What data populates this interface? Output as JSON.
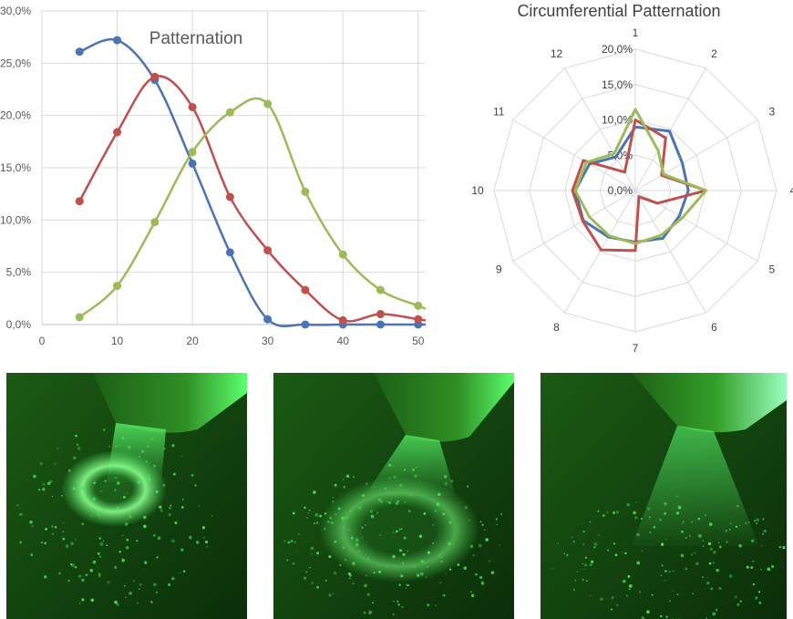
{
  "chart_data": [
    {
      "type": "line",
      "title": "Patternation",
      "xlabel": "",
      "ylabel": "",
      "xlim": [
        0,
        51
      ],
      "ylim": [
        0,
        30
      ],
      "x_ticks": [
        "0",
        "10",
        "20",
        "30",
        "40",
        "50"
      ],
      "y_ticks": [
        "0,0%",
        "5,0%",
        "10,0%",
        "15,0%",
        "20,0%",
        "25,0%",
        "30,0%"
      ],
      "grid": true,
      "smooth": true,
      "x": [
        5,
        10,
        15,
        20,
        25,
        30,
        35,
        40,
        45,
        50
      ],
      "series": [
        {
          "color": "#4a74b5",
          "values": [
            26.1,
            27.2,
            23.4,
            15.4,
            6.9,
            0.5,
            0.0,
            0.0,
            0.0,
            0.0
          ]
        },
        {
          "color": "#c0504d",
          "values": [
            11.8,
            18.4,
            23.7,
            20.8,
            12.2,
            7.1,
            3.3,
            0.4,
            1.0,
            0.5
          ]
        },
        {
          "color": "#9bbb59",
          "values": [
            0.7,
            3.7,
            9.8,
            16.5,
            20.3,
            21.1,
            12.7,
            6.7,
            3.3,
            1.8
          ]
        }
      ]
    },
    {
      "type": "radar",
      "title": "Circumferential Patternation",
      "categories": [
        "1",
        "2",
        "3",
        "4",
        "5",
        "6",
        "7",
        "8",
        "9",
        "10",
        "11",
        "12"
      ],
      "ticks": [
        "0,0%",
        "5,0%",
        "10,0%",
        "15,0%",
        "20,0%"
      ],
      "range": [
        0,
        20
      ],
      "series": [
        {
          "color": "#4a74b5",
          "values": [
            9.0,
            9.7,
            7.7,
            7.5,
            7.2,
            7.8,
            7.3,
            7.6,
            8.5,
            8.5,
            7.5,
            5.5
          ]
        },
        {
          "color": "#c0504d",
          "values": [
            10.0,
            8.6,
            4.3,
            10.0,
            3.6,
            1.0,
            8.5,
            9.7,
            8.6,
            8.9,
            8.5,
            3.0
          ]
        },
        {
          "color": "#9bbb59",
          "values": [
            11.5,
            6.5,
            4.6,
            10.0,
            7.7,
            7.3,
            7.5,
            7.4,
            7.5,
            8.5,
            8.0,
            6.0
          ]
        }
      ]
    }
  ],
  "photos": [
    {
      "name": "spray-photo-1",
      "spread": "narrow",
      "color": "#4bea5e"
    },
    {
      "name": "spray-photo-2",
      "spread": "medium",
      "color": "#4bea5e"
    },
    {
      "name": "spray-photo-3",
      "spread": "wide",
      "color": "#4bea5e"
    }
  ],
  "colors": {
    "grid": "#d9d9d9",
    "axis_text": "#595959",
    "title": "#595959"
  }
}
